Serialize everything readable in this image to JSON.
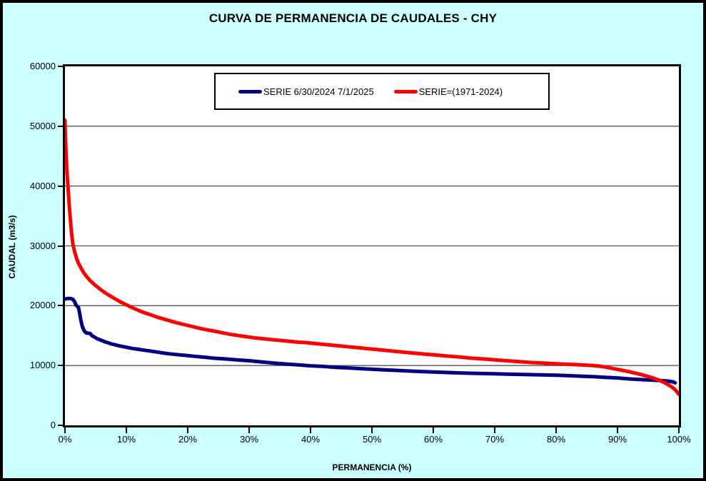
{
  "window": {
    "background_color": "#CCFFFF",
    "frame_color": "#000000",
    "plot_background": "#FFFFFF",
    "gridline_color": "#555555"
  },
  "title": "CURVA DE PERMANENCIA DE CAUDALES - CHY",
  "chart_data": {
    "type": "line",
    "title": "CURVA DE PERMANENCIA DE CAUDALES - CHY",
    "xlabel": "PERMANENCIA (%)",
    "ylabel": "CAUDAL (m3/s)",
    "xlim": [
      0,
      100
    ],
    "ylim": [
      0,
      60000
    ],
    "grid": "horizontal-only",
    "legend_position": "top-center-boxed",
    "x_ticks": [
      {
        "p": 0,
        "label": "0%"
      },
      {
        "p": 10,
        "label": "10%"
      },
      {
        "p": 20,
        "label": "20%"
      },
      {
        "p": 30,
        "label": "30%"
      },
      {
        "p": 40,
        "label": "40%"
      },
      {
        "p": 50,
        "label": "50%"
      },
      {
        "p": 60,
        "label": "60%"
      },
      {
        "p": 70,
        "label": "70%"
      },
      {
        "p": 80,
        "label": "80%"
      },
      {
        "p": 90,
        "label": "90%"
      },
      {
        "p": 100,
        "label": "100%"
      }
    ],
    "y_ticks": [
      0,
      10000,
      20000,
      30000,
      40000,
      50000,
      60000
    ],
    "series": [
      {
        "name": "SERIE 6/30/2024 7/1/2025",
        "color": "#000080",
        "line_width": 5,
        "points": [
          [
            0,
            21100
          ],
          [
            0.4,
            21200
          ],
          [
            0.9,
            21200
          ],
          [
            1.3,
            21050
          ],
          [
            1.6,
            20600
          ],
          [
            1.8,
            20100
          ],
          [
            2.0,
            19900
          ],
          [
            2.2,
            19700
          ],
          [
            2.4,
            18700
          ],
          [
            2.6,
            17500
          ],
          [
            2.8,
            16600
          ],
          [
            3.0,
            16100
          ],
          [
            3.2,
            15700
          ],
          [
            3.5,
            15450
          ],
          [
            4.1,
            15350
          ],
          [
            4.4,
            15000
          ],
          [
            4.8,
            14750
          ],
          [
            5.2,
            14500
          ],
          [
            5.8,
            14250
          ],
          [
            6.4,
            14000
          ],
          [
            7.0,
            13800
          ],
          [
            7.6,
            13600
          ],
          [
            8.2,
            13450
          ],
          [
            9.0,
            13250
          ],
          [
            10,
            13050
          ],
          [
            11,
            12850
          ],
          [
            12,
            12700
          ],
          [
            13,
            12550
          ],
          [
            14,
            12400
          ],
          [
            15,
            12250
          ],
          [
            16,
            12100
          ],
          [
            17,
            11950
          ],
          [
            18,
            11850
          ],
          [
            19,
            11750
          ],
          [
            20,
            11650
          ],
          [
            21,
            11550
          ],
          [
            22,
            11450
          ],
          [
            23,
            11350
          ],
          [
            24,
            11250
          ],
          [
            26,
            11100
          ],
          [
            28,
            10950
          ],
          [
            30,
            10800
          ],
          [
            32,
            10600
          ],
          [
            34,
            10400
          ],
          [
            36,
            10250
          ],
          [
            38,
            10100
          ],
          [
            40,
            9950
          ],
          [
            42,
            9850
          ],
          [
            44,
            9700
          ],
          [
            46,
            9600
          ],
          [
            48,
            9480
          ],
          [
            50,
            9380
          ],
          [
            52,
            9280
          ],
          [
            54,
            9180
          ],
          [
            56,
            9080
          ],
          [
            58,
            9000
          ],
          [
            60,
            8920
          ],
          [
            62,
            8840
          ],
          [
            64,
            8770
          ],
          [
            66,
            8710
          ],
          [
            68,
            8660
          ],
          [
            70,
            8620
          ],
          [
            72,
            8570
          ],
          [
            74,
            8520
          ],
          [
            76,
            8470
          ],
          [
            78,
            8420
          ],
          [
            80,
            8370
          ],
          [
            82,
            8300
          ],
          [
            84,
            8220
          ],
          [
            86,
            8130
          ],
          [
            88,
            8030
          ],
          [
            90,
            7920
          ],
          [
            92,
            7750
          ],
          [
            94,
            7640
          ],
          [
            96,
            7540
          ],
          [
            97.5,
            7460
          ],
          [
            98.5,
            7360
          ],
          [
            99.1,
            7250
          ],
          [
            99.4,
            7100
          ]
        ]
      },
      {
        "name": "SERIE=(1971-2024)",
        "color": "#FF0000",
        "line_width": 5,
        "points": [
          [
            0,
            51000
          ],
          [
            0.1,
            47500
          ],
          [
            0.2,
            45000
          ],
          [
            0.35,
            42000
          ],
          [
            0.5,
            39800
          ],
          [
            0.7,
            36800
          ],
          [
            0.9,
            34200
          ],
          [
            1.1,
            31800
          ],
          [
            1.3,
            30200
          ],
          [
            1.6,
            28900
          ],
          [
            1.9,
            27900
          ],
          [
            2.2,
            27100
          ],
          [
            2.6,
            26300
          ],
          [
            3.0,
            25600
          ],
          [
            3.5,
            24900
          ],
          [
            4.0,
            24300
          ],
          [
            4.5,
            23800
          ],
          [
            5.0,
            23350
          ],
          [
            5.5,
            22950
          ],
          [
            6.0,
            22550
          ],
          [
            6.5,
            22200
          ],
          [
            7.0,
            21850
          ],
          [
            7.5,
            21550
          ],
          [
            8.0,
            21250
          ],
          [
            8.5,
            20950
          ],
          [
            9.0,
            20650
          ],
          [
            9.5,
            20400
          ],
          [
            10,
            20150
          ],
          [
            11,
            19650
          ],
          [
            12,
            19200
          ],
          [
            13,
            18800
          ],
          [
            14,
            18450
          ],
          [
            15,
            18100
          ],
          [
            16,
            17800
          ],
          [
            17,
            17500
          ],
          [
            18,
            17200
          ],
          [
            19,
            16950
          ],
          [
            20,
            16700
          ],
          [
            21,
            16450
          ],
          [
            22,
            16200
          ],
          [
            23,
            16000
          ],
          [
            24,
            15800
          ],
          [
            25,
            15600
          ],
          [
            26,
            15400
          ],
          [
            27,
            15200
          ],
          [
            28,
            15050
          ],
          [
            29,
            14900
          ],
          [
            30,
            14750
          ],
          [
            31,
            14600
          ],
          [
            32,
            14500
          ],
          [
            33,
            14400
          ],
          [
            34,
            14300
          ],
          [
            35,
            14200
          ],
          [
            36,
            14100
          ],
          [
            37,
            14000
          ],
          [
            38,
            13900
          ],
          [
            39,
            13850
          ],
          [
            40,
            13750
          ],
          [
            41,
            13650
          ],
          [
            42,
            13550
          ],
          [
            43,
            13450
          ],
          [
            44,
            13350
          ],
          [
            45,
            13250
          ],
          [
            46,
            13150
          ],
          [
            47,
            13050
          ],
          [
            48,
            12950
          ],
          [
            49,
            12850
          ],
          [
            50,
            12750
          ],
          [
            52,
            12550
          ],
          [
            54,
            12350
          ],
          [
            56,
            12150
          ],
          [
            58,
            11950
          ],
          [
            60,
            11800
          ],
          [
            62,
            11600
          ],
          [
            64,
            11450
          ],
          [
            66,
            11250
          ],
          [
            68,
            11100
          ],
          [
            70,
            10950
          ],
          [
            72,
            10800
          ],
          [
            74,
            10650
          ],
          [
            76,
            10500
          ],
          [
            78,
            10400
          ],
          [
            80,
            10300
          ],
          [
            82,
            10200
          ],
          [
            84,
            10100
          ],
          [
            86,
            10000
          ],
          [
            87,
            9900
          ],
          [
            88,
            9750
          ],
          [
            89,
            9550
          ],
          [
            90,
            9350
          ],
          [
            91,
            9150
          ],
          [
            92,
            8950
          ],
          [
            93,
            8700
          ],
          [
            94,
            8450
          ],
          [
            95,
            8150
          ],
          [
            96,
            7850
          ],
          [
            97,
            7450
          ],
          [
            98,
            6950
          ],
          [
            98.5,
            6650
          ],
          [
            99,
            6300
          ],
          [
            99.4,
            5950
          ],
          [
            99.7,
            5600
          ],
          [
            100,
            5200
          ]
        ]
      }
    ]
  }
}
